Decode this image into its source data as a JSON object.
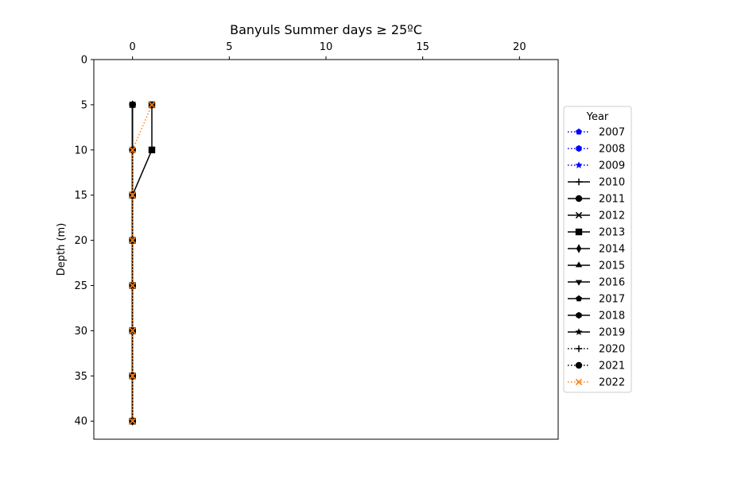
{
  "chart_data": {
    "type": "line",
    "title": "Banyuls Summer days ≥ 25ºC",
    "xlabel": "",
    "ylabel": "Depth (m)",
    "xlim": [
      -2,
      22
    ],
    "ylim": [
      42,
      0
    ],
    "x_axis_position": "top",
    "y_inverted": true,
    "xticks": [
      0,
      5,
      10,
      15,
      20
    ],
    "yticks": [
      0,
      5,
      10,
      15,
      20,
      25,
      30,
      35,
      40
    ],
    "grid": false,
    "legend": {
      "title": "Year",
      "placement": "outside-right"
    },
    "depths": [
      5,
      10,
      15,
      20,
      25,
      30,
      35,
      40
    ],
    "series": [
      {
        "name": "2007",
        "color": "#0000ff",
        "linestyle": "dotted",
        "marker": "pentagon",
        "values": [
          0,
          0,
          0,
          0,
          0,
          0,
          0,
          0
        ]
      },
      {
        "name": "2008",
        "color": "#0000ff",
        "linestyle": "dotted",
        "marker": "hexagon",
        "values": [
          0,
          0,
          0,
          0,
          0,
          0,
          0,
          0
        ]
      },
      {
        "name": "2009",
        "color": "#0000ff",
        "linestyle": "dotted",
        "marker": "star",
        "values": [
          0,
          0,
          0,
          0,
          0,
          0,
          0,
          0
        ]
      },
      {
        "name": "2010",
        "color": "#000000",
        "linestyle": "solid",
        "marker": "plus",
        "values": [
          0,
          0,
          0,
          0,
          0,
          0,
          0,
          0
        ]
      },
      {
        "name": "2011",
        "color": "#000000",
        "linestyle": "solid",
        "marker": "circle",
        "values": [
          0,
          0,
          0,
          0,
          0,
          0,
          0,
          0
        ]
      },
      {
        "name": "2012",
        "color": "#000000",
        "linestyle": "solid",
        "marker": "x",
        "values": [
          0,
          0,
          0,
          0,
          0,
          0,
          0,
          0
        ]
      },
      {
        "name": "2013",
        "color": "#000000",
        "linestyle": "solid",
        "marker": "square",
        "values": [
          1,
          1,
          0,
          0,
          0,
          0,
          0,
          0
        ]
      },
      {
        "name": "2014",
        "color": "#000000",
        "linestyle": "solid",
        "marker": "diamond",
        "values": [
          0,
          0,
          0,
          0,
          0,
          0,
          0,
          0
        ]
      },
      {
        "name": "2015",
        "color": "#000000",
        "linestyle": "solid",
        "marker": "triangle-up",
        "values": [
          0,
          0,
          0,
          0,
          0,
          0,
          0,
          0
        ]
      },
      {
        "name": "2016",
        "color": "#000000",
        "linestyle": "solid",
        "marker": "triangle-down",
        "values": [
          0,
          0,
          0,
          0,
          0,
          0,
          0,
          0
        ]
      },
      {
        "name": "2017",
        "color": "#000000",
        "linestyle": "solid",
        "marker": "pentagon",
        "values": [
          0,
          0,
          0,
          0,
          0,
          0,
          0,
          0
        ]
      },
      {
        "name": "2018",
        "color": "#000000",
        "linestyle": "solid",
        "marker": "hexagon",
        "values": [
          0,
          0,
          0,
          0,
          0,
          0,
          0,
          0
        ]
      },
      {
        "name": "2019",
        "color": "#000000",
        "linestyle": "solid",
        "marker": "star",
        "values": [
          0,
          0,
          0,
          0,
          0,
          0,
          0,
          0
        ]
      },
      {
        "name": "2020",
        "color": "#000000",
        "linestyle": "dotted",
        "marker": "plus",
        "values": [
          0,
          0,
          0,
          0,
          0,
          0,
          0,
          0
        ]
      },
      {
        "name": "2021",
        "color": "#000000",
        "linestyle": "dotted",
        "marker": "circle",
        "values": [
          0,
          0,
          0,
          0,
          0,
          0,
          0,
          0
        ]
      },
      {
        "name": "2022",
        "color": "#ff7f0e",
        "linestyle": "dotted",
        "marker": "x",
        "values": [
          1,
          0,
          0,
          0,
          0,
          0,
          0,
          0
        ]
      }
    ]
  }
}
